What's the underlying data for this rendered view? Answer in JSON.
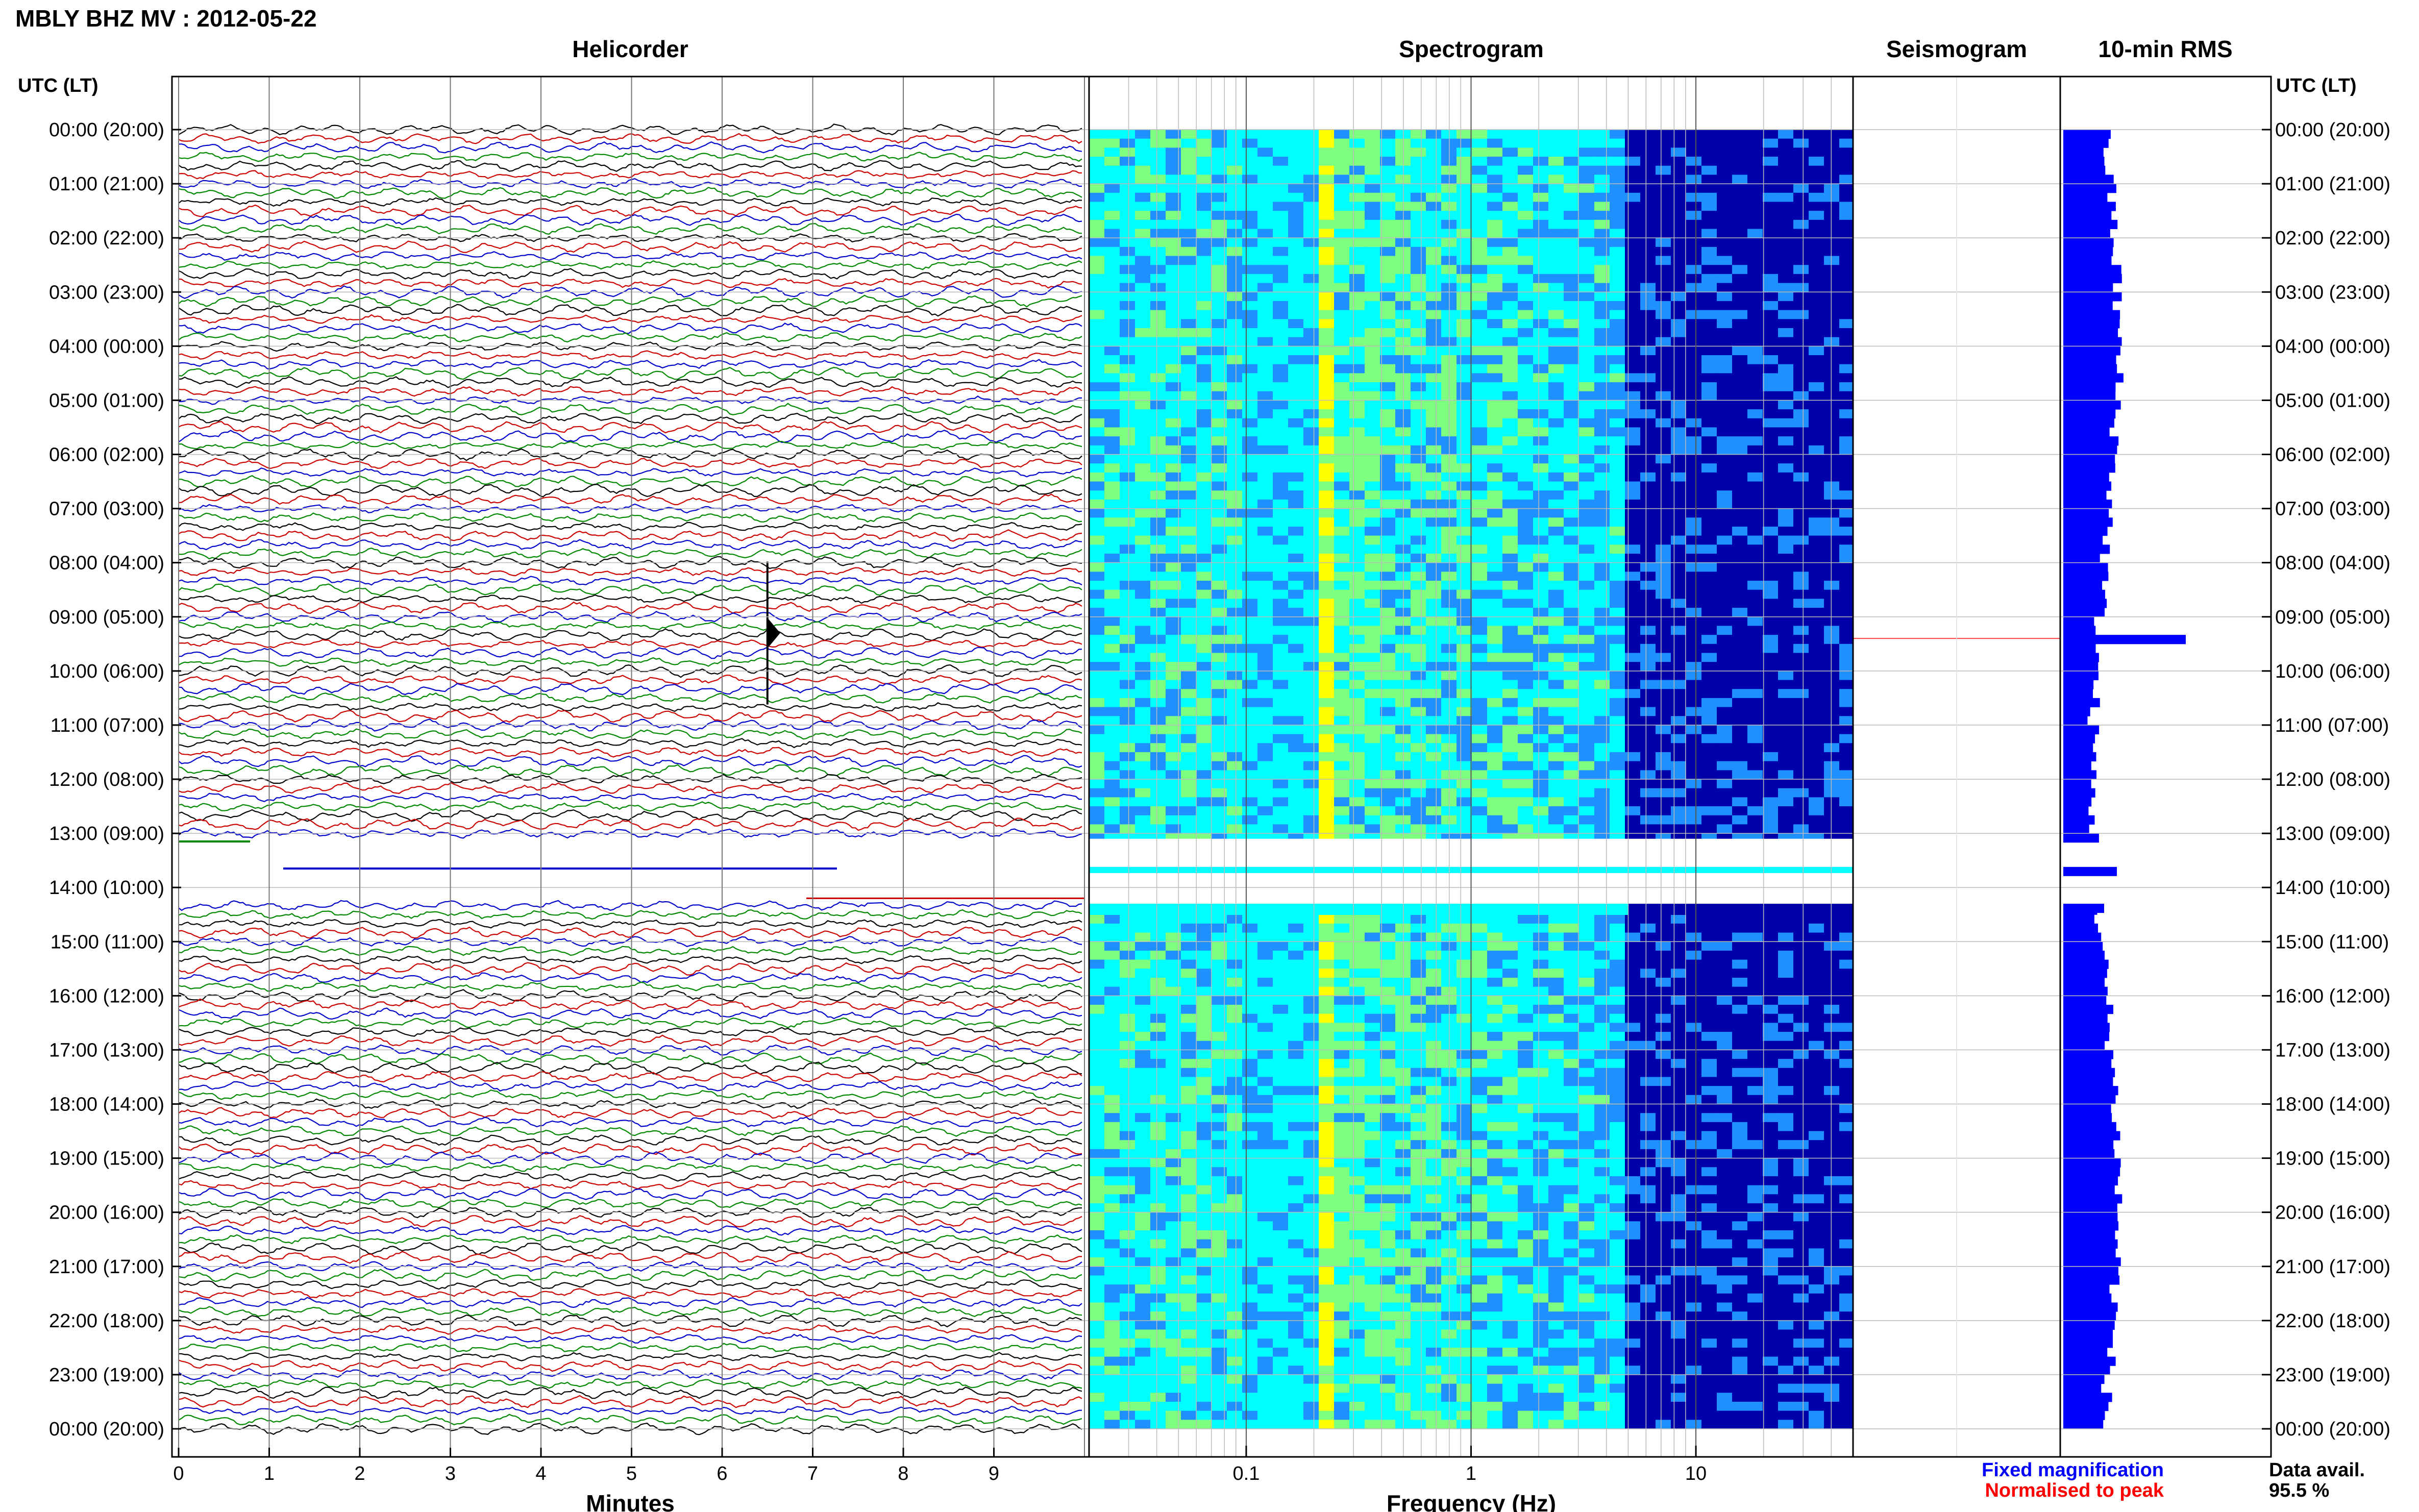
{
  "title": "MBLY BHZ MV : 2012-05-22",
  "panels": {
    "helicorder": "Helicorder",
    "spectrogram": "Spectrogram",
    "seismogram": "Seismogram",
    "rms": "10-min RMS"
  },
  "time_axis": {
    "label": "UTC (LT)",
    "ticks": [
      "00:00 (20:00)",
      "01:00 (21:00)",
      "02:00 (22:00)",
      "03:00 (23:00)",
      "04:00 (00:00)",
      "05:00 (01:00)",
      "06:00 (02:00)",
      "07:00 (03:00)",
      "08:00 (04:00)",
      "09:00 (05:00)",
      "10:00 (06:00)",
      "11:00 (07:00)",
      "12:00 (08:00)",
      "13:00 (09:00)",
      "14:00 (10:00)",
      "15:00 (11:00)",
      "16:00 (12:00)",
      "17:00 (13:00)",
      "18:00 (14:00)",
      "19:00 (15:00)",
      "20:00 (16:00)",
      "21:00 (17:00)",
      "22:00 (18:00)",
      "23:00 (19:00)",
      "00:00 (20:00)"
    ]
  },
  "chart_data": [
    {
      "type": "line",
      "title": "Helicorder",
      "xlabel": "Minutes",
      "x_ticks": [
        "0",
        "1",
        "2",
        "3",
        "4",
        "5",
        "6",
        "7",
        "8",
        "9"
      ],
      "xlim": [
        0,
        10
      ],
      "ylim_hours_utc": [
        0,
        24
      ],
      "trace_interval_min": 10,
      "trace_colors": [
        "#000000",
        "#cc0000",
        "#0000cc",
        "#008800"
      ],
      "data_gap_hours_utc": [
        13.1,
        14.3
      ],
      "events": [
        {
          "hour_utc": 9.3,
          "minute": 6.5,
          "note": "large transient"
        }
      ]
    },
    {
      "type": "heatmap",
      "title": "Spectrogram",
      "xlabel": "Frequency (Hz)",
      "x_scale": "log",
      "xlim": [
        0.02,
        50
      ],
      "x_ticks": [
        "0.1",
        "1",
        "10"
      ],
      "ylim_hours_utc": [
        0,
        24
      ],
      "colormap": [
        "#00ffff",
        "#7fff7f",
        "#ffff00",
        "#1e90ff",
        "#0000aa"
      ],
      "peak_band_hz": [
        0.2,
        0.25
      ],
      "data_gap_hours_utc": [
        13.1,
        14.3
      ]
    },
    {
      "type": "line",
      "title": "Seismogram",
      "series": [
        {
          "name": "Fixed magnification",
          "color": "#0000ff"
        },
        {
          "name": "Normalised to peak",
          "color": "#ff0000"
        }
      ],
      "legend": "bottom",
      "ylim_hours_utc": [
        0,
        24
      ],
      "marker_hour_utc": 9.4
    },
    {
      "type": "bar",
      "title": "10-min RMS",
      "orientation": "horizontal",
      "color": "#0000ff",
      "ylim_hours_utc": [
        0,
        24
      ],
      "peak_hour_utc": 9.4,
      "data_gap_hours_utc": [
        13.1,
        14.3
      ]
    }
  ],
  "data_availability": {
    "label": "Data avail.",
    "value": "95.5 %"
  }
}
